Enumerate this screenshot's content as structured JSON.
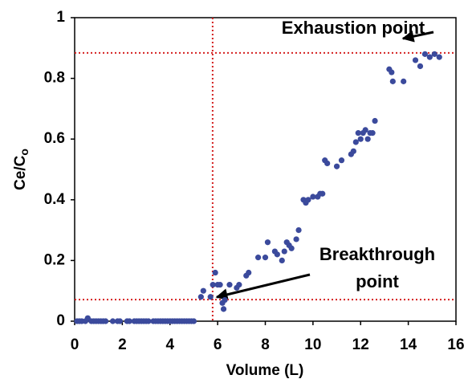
{
  "chart_data": {
    "type": "scatter",
    "x_label": "Volume (L)",
    "y_label": "Ce/C",
    "y_label_sub": "o",
    "xlim": [
      0,
      16
    ],
    "xticks": [
      0,
      2,
      4,
      6,
      8,
      10,
      12,
      14,
      16
    ],
    "ylim": [
      0,
      1
    ],
    "yticks": [
      0,
      0.2,
      0.4,
      0.6,
      0.8,
      1
    ],
    "series": [
      {
        "color": "#3b4a9c",
        "x": [
          0.1,
          0.2,
          0.3,
          0.45,
          0.55,
          0.7,
          0.8,
          0.9,
          1.0,
          1.1,
          1.2,
          1.3,
          1.6,
          1.8,
          1.9,
          2.2,
          2.3,
          2.5,
          2.6,
          2.7,
          2.8,
          2.9,
          3.0,
          3.1,
          3.3,
          3.4,
          3.5,
          3.6,
          3.7,
          3.8,
          3.9,
          4.0,
          4.1,
          4.2,
          4.3,
          4.4,
          4.5,
          4.6,
          4.7,
          4.8,
          4.9,
          5.0,
          5.3,
          5.4,
          5.7,
          5.8,
          5.9,
          6.0,
          6.1,
          6.2,
          6.25,
          6.3,
          6.5,
          6.8,
          6.9,
          7.2,
          7.3,
          7.7,
          8.0,
          8.1,
          8.4,
          8.5,
          8.7,
          8.8,
          8.9,
          9.0,
          9.1,
          9.3,
          9.4,
          9.6,
          9.7,
          9.8,
          10.0,
          10.2,
          10.3,
          10.4,
          10.5,
          10.6,
          11.0,
          11.2,
          11.6,
          11.7,
          11.8,
          11.9,
          12.0,
          12.1,
          12.2,
          12.3,
          12.4,
          12.5,
          12.6,
          13.2,
          13.3,
          13.35,
          13.8,
          14.3,
          14.5,
          14.7,
          14.9,
          15.1,
          15.3
        ],
        "values": [
          0,
          0,
          0,
          0,
          0.01,
          0,
          0,
          0,
          0,
          0,
          0,
          0,
          0,
          0,
          0,
          0,
          0,
          0,
          0,
          0,
          0,
          0,
          0,
          0,
          0,
          0,
          0,
          0,
          0,
          0,
          0,
          0,
          0,
          0,
          0,
          0,
          0,
          0,
          0,
          0,
          0,
          0,
          0.08,
          0.1,
          0.08,
          0.12,
          0.16,
          0.12,
          0.12,
          0.06,
          0.04,
          0.07,
          0.12,
          0.11,
          0.12,
          0.15,
          0.16,
          0.21,
          0.21,
          0.26,
          0.23,
          0.22,
          0.2,
          0.23,
          0.26,
          0.25,
          0.24,
          0.27,
          0.3,
          0.4,
          0.39,
          0.4,
          0.41,
          0.41,
          0.42,
          0.42,
          0.53,
          0.52,
          0.51,
          0.53,
          0.55,
          0.56,
          0.59,
          0.62,
          0.6,
          0.62,
          0.63,
          0.6,
          0.62,
          0.62,
          0.66,
          0.83,
          0.82,
          0.79,
          0.79,
          0.86,
          0.84,
          0.88,
          0.87,
          0.88,
          0.87
        ]
      }
    ],
    "hlines": [
      0.884,
      0.071
    ],
    "vlines": [
      5.79
    ],
    "ref_color": "#d42020",
    "annotations": [
      {
        "lines": [
          "Exhaustion point"
        ]
      },
      {
        "lines": [
          "Breakthrough",
          "point"
        ]
      }
    ]
  }
}
